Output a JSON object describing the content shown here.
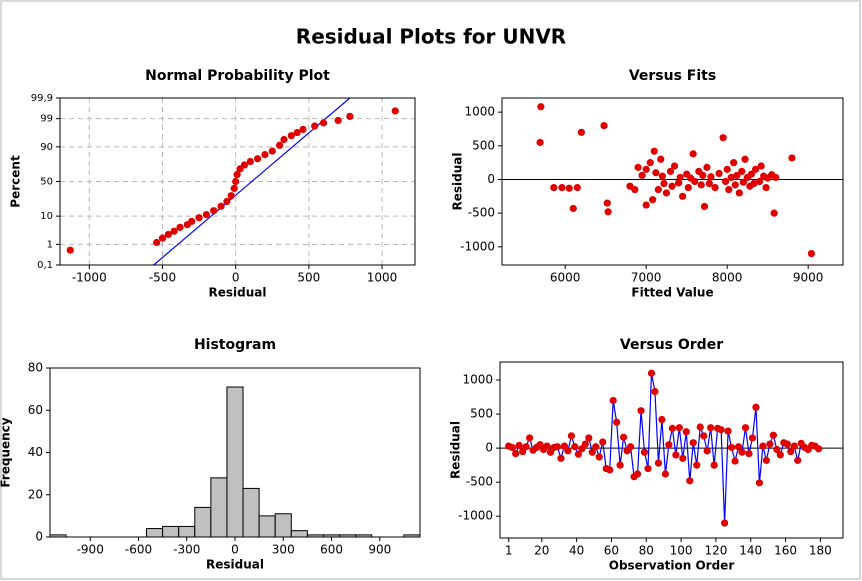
{
  "title": "Residual Plots for UNVR",
  "chart_data": [
    {
      "type": "scatter",
      "title": "Normal Probability Plot",
      "xlabel": "Residual",
      "ylabel": "Percent",
      "yscale": "normal-probability",
      "grid": true,
      "color": "#e00000",
      "line_color": "#0000ff",
      "xlim": [
        -1200,
        1225
      ],
      "ylim": [
        0.1,
        99.9
      ],
      "xticks": [
        -1000,
        -500,
        0,
        500,
        1000
      ],
      "yticks": [
        {
          "value": 0.1,
          "label": "0,1"
        },
        1,
        10,
        50,
        90,
        99,
        {
          "value": 99.9,
          "label": "99,9"
        }
      ],
      "x": [
        -1130,
        -540,
        -500,
        -460,
        -420,
        -380,
        -330,
        -300,
        -250,
        -200,
        -150,
        -100,
        -60,
        -30,
        -10,
        0,
        10,
        30,
        60,
        100,
        150,
        200,
        250,
        300,
        330,
        380,
        420,
        460,
        540,
        600,
        700,
        780,
        1090
      ],
      "values": [
        0.55,
        1.2,
        1.8,
        2.5,
        3.3,
        4.5,
        5.5,
        7,
        9,
        11,
        14,
        18,
        23,
        30,
        40,
        50,
        60,
        68,
        73,
        77,
        80,
        84,
        87,
        91,
        94,
        95.5,
        96.5,
        97.3,
        98,
        98.5,
        98.8,
        99.2,
        99.55
      ],
      "fit_line": {
        "x": [
          -560,
          780
        ],
        "values": [
          0.1,
          99.9
        ]
      }
    },
    {
      "type": "scatter",
      "title": "Versus Fits",
      "xlabel": "Fitted Value",
      "ylabel": "Residual",
      "grid": false,
      "color": "#e00000",
      "reference_line": 0,
      "xlim": [
        5220,
        9430
      ],
      "ylim": [
        -1270,
        1210
      ],
      "xticks": [
        6000,
        7000,
        8000,
        9000
      ],
      "yticks": [
        -1000,
        -500,
        0,
        500,
        1000
      ],
      "x": [
        5700,
        5690,
        5860,
        5960,
        6050,
        6100,
        6150,
        6200,
        6480,
        6520,
        6530,
        6800,
        6860,
        6900,
        6950,
        7000,
        7000,
        7050,
        7080,
        7100,
        7120,
        7150,
        7180,
        7200,
        7220,
        7250,
        7300,
        7320,
        7350,
        7400,
        7420,
        7450,
        7500,
        7520,
        7550,
        7580,
        7600,
        7650,
        7680,
        7700,
        7720,
        7750,
        7780,
        7800,
        7850,
        7900,
        7950,
        7980,
        8000,
        8020,
        8050,
        8080,
        8100,
        8120,
        8150,
        8180,
        8200,
        8220,
        8250,
        8280,
        8300,
        8330,
        8350,
        8400,
        8420,
        8450,
        8480,
        8500,
        8550,
        8580,
        8600,
        8800,
        9040
      ],
      "values": [
        1080,
        550,
        -120,
        -120,
        -130,
        -430,
        -120,
        700,
        800,
        -350,
        -480,
        -100,
        -150,
        180,
        60,
        150,
        -380,
        250,
        -300,
        420,
        100,
        -150,
        300,
        50,
        -60,
        -200,
        120,
        -100,
        200,
        -50,
        30,
        -250,
        80,
        -120,
        20,
        380,
        -30,
        120,
        -80,
        60,
        -400,
        180,
        -60,
        40,
        -120,
        90,
        620,
        -30,
        150,
        -150,
        30,
        250,
        -80,
        60,
        -200,
        120,
        -40,
        300,
        30,
        -100,
        80,
        -60,
        150,
        -30,
        200,
        50,
        -120,
        20,
        70,
        -500,
        30,
        320,
        -1100
      ]
    },
    {
      "type": "histogram",
      "title": "Histogram",
      "xlabel": "Residual",
      "ylabel": "Frequency",
      "grid": false,
      "color": "#c0c0c0",
      "xlim": [
        -1150,
        1150
      ],
      "ylim": [
        0,
        80
      ],
      "xticks": [
        -900,
        -600,
        -300,
        0,
        300,
        600,
        900
      ],
      "yticks": [
        0,
        20,
        40,
        60,
        80
      ],
      "bins": [
        -1150,
        -1050,
        -950,
        -850,
        -750,
        -650,
        -550,
        -450,
        -350,
        -250,
        -150,
        -50,
        50,
        150,
        250,
        350,
        450,
        550,
        650,
        750,
        850,
        950,
        1050,
        1150
      ],
      "values": [
        1,
        0,
        0,
        0,
        0,
        0,
        4,
        5,
        5,
        14,
        28,
        71,
        23,
        10,
        11,
        3,
        1,
        1,
        1,
        1,
        0,
        0,
        1
      ]
    },
    {
      "type": "line",
      "title": "Versus Order",
      "xlabel": "Observation Order",
      "ylabel": "Residual",
      "grid": false,
      "color": "#e00000",
      "line_color": "#0000ff",
      "reference_line": 0,
      "xlim": [
        -4,
        193
      ],
      "ylim": [
        -1320,
        1265
      ],
      "xticks": [
        1,
        20,
        40,
        60,
        80,
        100,
        120,
        140,
        160,
        180
      ],
      "yticks": [
        -1000,
        -500,
        0,
        500,
        1000
      ],
      "x": [
        1,
        3,
        5,
        7,
        9,
        11,
        13,
        15,
        17,
        19,
        21,
        23,
        25,
        27,
        29,
        31,
        33,
        35,
        37,
        39,
        41,
        43,
        45,
        47,
        49,
        51,
        53,
        55,
        57,
        59,
        61,
        63,
        65,
        67,
        69,
        71,
        73,
        75,
        77,
        79,
        81,
        83,
        85,
        87,
        89,
        91,
        93,
        95,
        97,
        99,
        101,
        103,
        105,
        107,
        109,
        111,
        113,
        115,
        117,
        119,
        121,
        123,
        125,
        127,
        129,
        131,
        133,
        135,
        137,
        139,
        141,
        143,
        145,
        147,
        149,
        151,
        153,
        155,
        157,
        159,
        161,
        163,
        165,
        167,
        169,
        171,
        173,
        175,
        177,
        179
      ],
      "values": [
        30,
        10,
        -80,
        40,
        -50,
        20,
        150,
        -30,
        10,
        50,
        -20,
        30,
        -60,
        10,
        20,
        -150,
        30,
        -40,
        180,
        20,
        -90,
        -10,
        60,
        150,
        -60,
        20,
        -130,
        90,
        -300,
        -320,
        700,
        380,
        -250,
        160,
        -40,
        20,
        -420,
        -380,
        550,
        -60,
        -300,
        1100,
        830,
        -220,
        420,
        -380,
        50,
        290,
        -100,
        300,
        -150,
        240,
        -480,
        80,
        -250,
        310,
        180,
        -40,
        300,
        -250,
        290,
        270,
        -1100,
        250,
        10,
        -190,
        20,
        -60,
        300,
        -80,
        150,
        600,
        -510,
        30,
        -180,
        60,
        190,
        -20,
        -100,
        80,
        60,
        -50,
        30,
        -180,
        70,
        10,
        -20,
        40,
        30,
        -10
      ]
    }
  ]
}
